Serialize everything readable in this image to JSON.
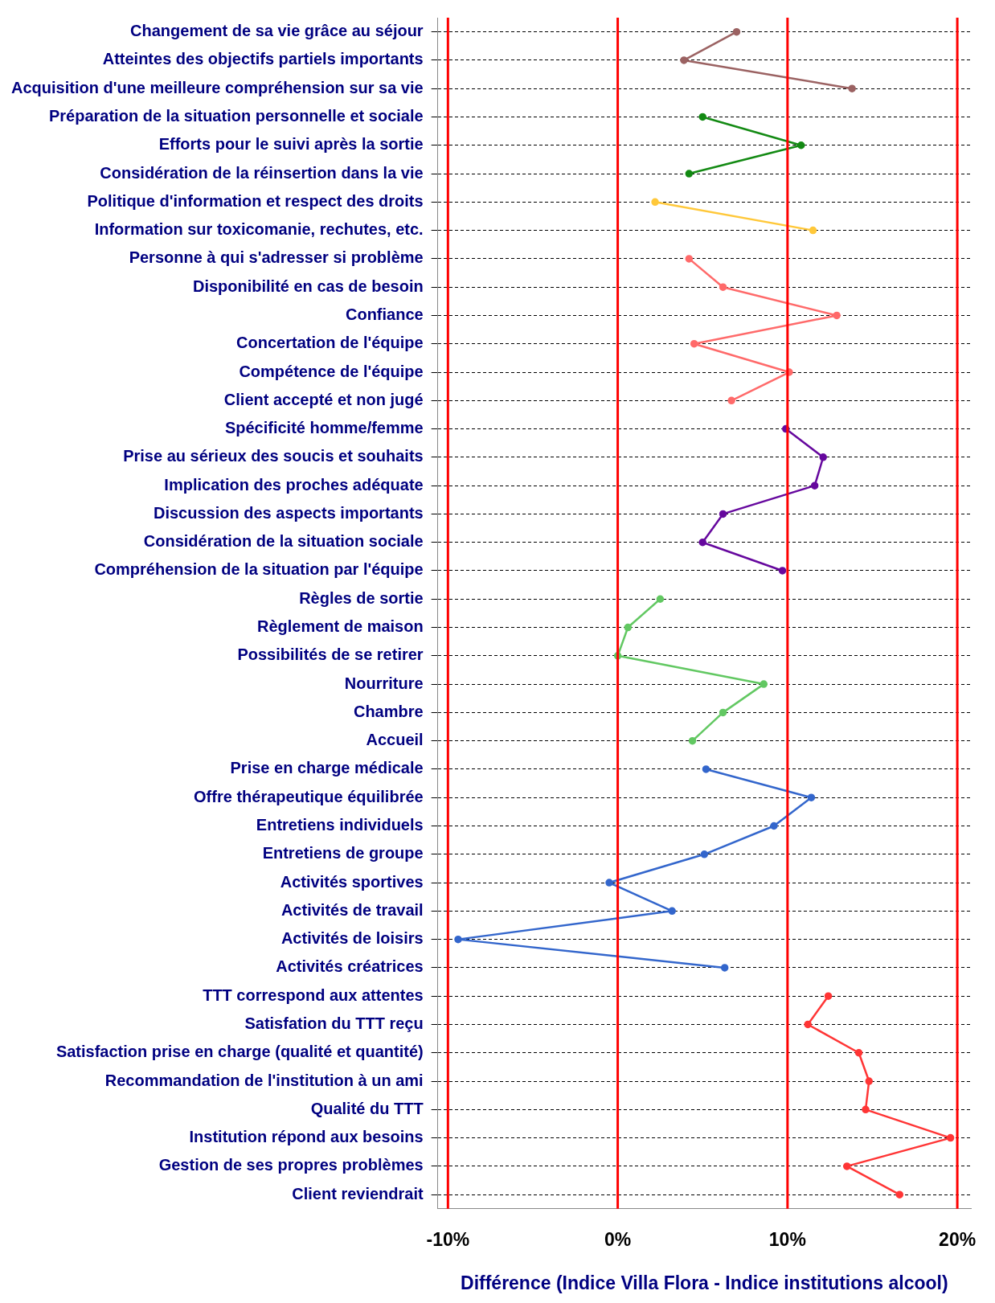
{
  "chart_data": {
    "type": "line",
    "orientation": "horizontal",
    "xlabel": "Différence (Indice Villa Flora - Indice institutions alcool)",
    "categories": [
      "Changement de sa vie grâce au séjour",
      "Atteintes des objectifs partiels importants",
      "Acquisition d'une meilleure compréhension sur sa vie",
      "Préparation de la situation personnelle et sociale",
      "Efforts pour le suivi après la sortie",
      "Considération de la réinsertion dans la vie",
      "Politique d'information et respect des droits",
      "Information sur toxicomanie, rechutes, etc.",
      "Personne à qui s'adresser si problème",
      "Disponibilité en cas de besoin",
      "Confiance",
      "Concertation de l'équipe",
      "Compétence de l'équipe",
      "Client accepté et non jugé",
      "Spécificité homme/femme",
      "Prise au sérieux des soucis et souhaits",
      "Implication des proches adéquate",
      "Discussion des aspects importants",
      "Considération de la situation sociale",
      "Compréhension de la situation par l'équipe",
      "Règles de sortie",
      "Règlement de maison",
      "Possibilités de se retirer",
      "Nourriture",
      "Chambre",
      "Accueil",
      "Prise en charge médicale",
      "Offre thérapeutique équilibrée",
      "Entretiens individuels",
      "Entretiens de groupe",
      "Activités sportives",
      "Activités de travail",
      "Activités de loisirs",
      "Activités créatrices",
      "TTT correspond aux attentes",
      "Satisfation du TTT reçu",
      "Satisfaction prise en charge (qualité et quantité)",
      "Recommandation de l'institution à un ami",
      "Qualité du TTT",
      "Institution répond aux besoins",
      "Gestion de ses propres problèmes",
      "Client reviendrait"
    ],
    "series": [
      {
        "color": "#9b6262",
        "values": [
          7.0,
          3.9,
          13.8,
          null,
          null,
          null,
          null,
          null,
          null,
          null,
          null,
          null,
          null,
          null,
          null,
          null,
          null,
          null,
          null,
          null,
          null,
          null,
          null,
          null,
          null,
          null,
          null,
          null,
          null,
          null,
          null,
          null,
          null,
          null,
          null,
          null,
          null,
          null,
          null,
          null,
          null,
          null
        ]
      },
      {
        "color": "#138a13",
        "values": [
          null,
          null,
          null,
          5.0,
          10.8,
          4.2,
          null,
          null,
          null,
          null,
          null,
          null,
          null,
          null,
          null,
          null,
          null,
          null,
          null,
          null,
          null,
          null,
          null,
          null,
          null,
          null,
          null,
          null,
          null,
          null,
          null,
          null,
          null,
          null,
          null,
          null,
          null,
          null,
          null,
          null,
          null,
          null
        ]
      },
      {
        "color": "#ffc83a",
        "values": [
          null,
          null,
          null,
          null,
          null,
          null,
          2.2,
          11.5,
          null,
          null,
          null,
          null,
          null,
          null,
          null,
          null,
          null,
          null,
          null,
          null,
          null,
          null,
          null,
          null,
          null,
          null,
          null,
          null,
          null,
          null,
          null,
          null,
          null,
          null,
          null,
          null,
          null,
          null,
          null,
          null,
          null,
          null
        ]
      },
      {
        "color": "#ff6a6a",
        "values": [
          null,
          null,
          null,
          null,
          null,
          null,
          null,
          null,
          4.2,
          6.2,
          12.9,
          4.5,
          10.1,
          6.7,
          null,
          null,
          null,
          null,
          null,
          null,
          null,
          null,
          null,
          null,
          null,
          null,
          null,
          null,
          null,
          null,
          null,
          null,
          null,
          null,
          null,
          null,
          null,
          null,
          null,
          null,
          null,
          null
        ]
      },
      {
        "color": "#66089e",
        "values": [
          null,
          null,
          null,
          null,
          null,
          null,
          null,
          null,
          null,
          null,
          null,
          null,
          null,
          null,
          9.9,
          12.1,
          11.6,
          6.2,
          5.0,
          9.7,
          null,
          null,
          null,
          null,
          null,
          null,
          null,
          null,
          null,
          null,
          null,
          null,
          null,
          null,
          null,
          null,
          null,
          null,
          null,
          null,
          null,
          null
        ]
      },
      {
        "color": "#62c862",
        "values": [
          null,
          null,
          null,
          null,
          null,
          null,
          null,
          null,
          null,
          null,
          null,
          null,
          null,
          null,
          null,
          null,
          null,
          null,
          null,
          null,
          2.5,
          0.6,
          0.0,
          8.6,
          6.2,
          4.4,
          null,
          null,
          null,
          null,
          null,
          null,
          null,
          null,
          null,
          null,
          null,
          null,
          null,
          null,
          null,
          null
        ]
      },
      {
        "color": "#3366cc",
        "values": [
          null,
          null,
          null,
          null,
          null,
          null,
          null,
          null,
          null,
          null,
          null,
          null,
          null,
          null,
          null,
          null,
          null,
          null,
          null,
          null,
          null,
          null,
          null,
          null,
          null,
          null,
          5.2,
          11.4,
          9.2,
          5.1,
          -0.5,
          3.2,
          -9.4,
          6.3,
          null,
          null,
          null,
          null,
          null,
          null,
          null,
          null
        ]
      },
      {
        "color": "#ff3535",
        "values": [
          null,
          null,
          null,
          null,
          null,
          null,
          null,
          null,
          null,
          null,
          null,
          null,
          null,
          null,
          null,
          null,
          null,
          null,
          null,
          null,
          null,
          null,
          null,
          null,
          null,
          null,
          null,
          null,
          null,
          null,
          null,
          null,
          null,
          null,
          12.4,
          11.2,
          14.2,
          14.8,
          14.6,
          19.6,
          13.5,
          16.6
        ]
      }
    ],
    "xlim": [
      -10.6,
      20.8
    ],
    "xticks": [
      {
        "value": -10,
        "label": "-10%"
      },
      {
        "value": 0,
        "label": "0%"
      },
      {
        "value": 10,
        "label": "10%"
      },
      {
        "value": 20,
        "label": "20%"
      }
    ],
    "ref_lines": [
      {
        "axis": "x",
        "value": -10,
        "color": "#ff0000"
      },
      {
        "axis": "x",
        "value": 0,
        "color": "#ff0000"
      },
      {
        "axis": "x",
        "value": 10,
        "color": "#ff0000"
      },
      {
        "axis": "x",
        "value": 20,
        "color": "#ff0000"
      }
    ],
    "grid": "y",
    "marker": "circle",
    "line_style": "solid"
  }
}
